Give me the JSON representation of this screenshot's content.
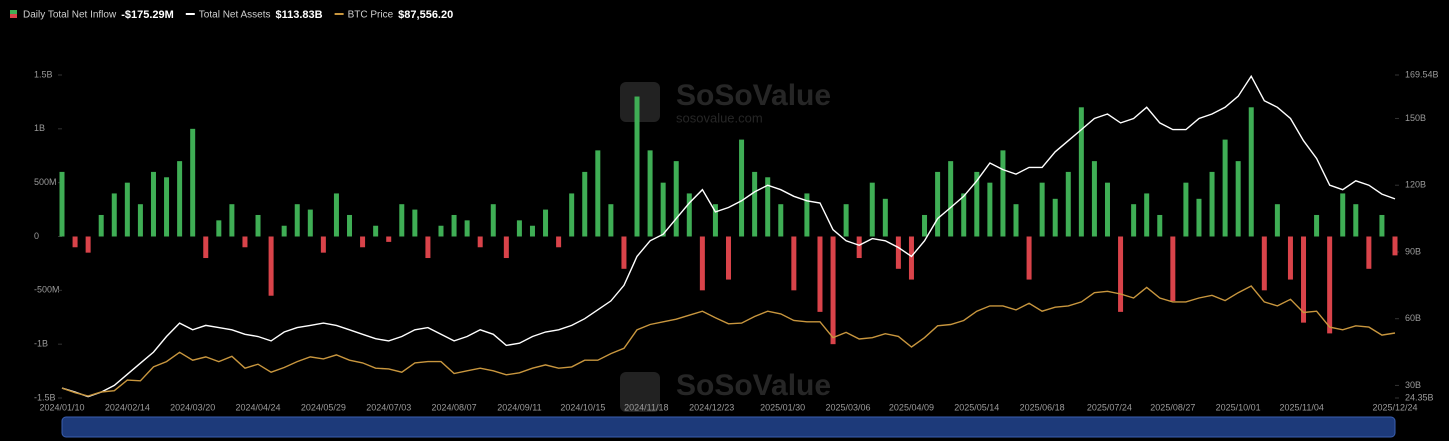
{
  "chart_data": {
    "type": "combo",
    "watermark": {
      "title": "SoSoValue",
      "site": "sosovalue.com"
    },
    "x": [
      "2024/01/10",
      "2024/01/17",
      "2024/01/24",
      "2024/01/31",
      "2024/02/07",
      "2024/02/14",
      "2024/02/21",
      "2024/02/28",
      "2024/03/06",
      "2024/03/13",
      "2024/03/20",
      "2024/03/27",
      "2024/04/03",
      "2024/04/10",
      "2024/04/17",
      "2024/04/24",
      "2024/05/01",
      "2024/05/08",
      "2024/05/15",
      "2024/05/22",
      "2024/05/29",
      "2024/06/05",
      "2024/06/12",
      "2024/06/19",
      "2024/06/26",
      "2024/07/03",
      "2024/07/10",
      "2024/07/17",
      "2024/07/24",
      "2024/07/31",
      "2024/08/07",
      "2024/08/14",
      "2024/08/21",
      "2024/08/28",
      "2024/09/04",
      "2024/09/11",
      "2024/09/18",
      "2024/09/25",
      "2024/10/02",
      "2024/10/09",
      "2024/10/16",
      "2024/10/23",
      "2024/10/30",
      "2024/11/06",
      "2024/11/13",
      "2024/11/20",
      "2024/11/27",
      "2024/12/04",
      "2024/12/11",
      "2024/12/18",
      "2024/12/25",
      "2025/01/01",
      "2025/01/08",
      "2025/01/15",
      "2025/01/22",
      "2025/01/29",
      "2025/02/05",
      "2025/02/12",
      "2025/02/19",
      "2025/02/26",
      "2025/03/05",
      "2025/03/12",
      "2025/03/19",
      "2025/03/26",
      "2025/04/02",
      "2025/04/09",
      "2025/04/16",
      "2025/04/23",
      "2025/04/30",
      "2025/05/07",
      "2025/05/14",
      "2025/05/21",
      "2025/05/28",
      "2025/06/04",
      "2025/06/11",
      "2025/06/18",
      "2025/06/25",
      "2025/07/02",
      "2025/07/09",
      "2025/07/16",
      "2025/07/23",
      "2025/07/30",
      "2025/08/06",
      "2025/08/13",
      "2025/08/20",
      "2025/08/27",
      "2025/09/03",
      "2025/09/10",
      "2025/09/17",
      "2025/09/24",
      "2025/10/01",
      "2025/10/08",
      "2025/10/15",
      "2025/10/22",
      "2025/10/29",
      "2025/11/05",
      "2025/11/12",
      "2025/11/19",
      "2025/11/26",
      "2025/12/03",
      "2025/12/10",
      "2025/12/17",
      "2025/12/24"
    ],
    "xlim": [
      "2024/01/10",
      "2025/12/24"
    ],
    "xticks": [
      "2024/01/10",
      "2024/02/14",
      "2024/03/20",
      "2024/04/24",
      "2024/05/29",
      "2024/07/03",
      "2024/08/07",
      "2024/09/11",
      "2024/10/15",
      "2024/11/18",
      "2024/12/23",
      "2025/01/30",
      "2025/03/06",
      "2025/04/09",
      "2025/05/14",
      "2025/06/18",
      "2025/07/24",
      "2025/08/27",
      "2025/10/01",
      "2025/11/04",
      "2025/12/24"
    ],
    "ylim": [
      -1500,
      1500
    ],
    "yticks": [
      {
        "value": -1500,
        "label": "-1.5B"
      },
      {
        "value": -1000,
        "label": "-1B"
      },
      {
        "value": -500,
        "label": "-500M"
      },
      0,
      {
        "value": 500,
        "label": "500M"
      },
      {
        "value": 1000,
        "label": "1B"
      },
      {
        "value": 1500,
        "label": "1.5B"
      }
    ],
    "y2lim": [
      24.35,
      169.54
    ],
    "y2ticks": [
      {
        "value": 24.35,
        "label": "24.35B"
      },
      {
        "value": 30,
        "label": "30B"
      },
      {
        "value": 60,
        "label": "60B"
      },
      {
        "value": 90,
        "label": "90B"
      },
      {
        "value": 120,
        "label": "120B"
      },
      {
        "value": 150,
        "label": "150B"
      },
      {
        "value": 169.54,
        "label": "169.54B"
      }
    ],
    "y3lim": [
      38500,
      282300
    ],
    "series": [
      {
        "name": "Daily Total Net Inflow",
        "type": "bar",
        "legend_value": "-$175.29M",
        "color": "#3fae55",
        "color_negative": "#d9434a",
        "values": [
          600,
          -100,
          -150,
          200,
          400,
          500,
          300,
          600,
          550,
          700,
          1000,
          -200,
          150,
          300,
          -100,
          200,
          -550,
          100,
          300,
          250,
          -150,
          400,
          200,
          -100,
          100,
          -50,
          300,
          250,
          -200,
          100,
          200,
          150,
          -100,
          300,
          -200,
          150,
          100,
          250,
          -100,
          400,
          600,
          800,
          300,
          -300,
          1300,
          800,
          500,
          700,
          400,
          -500,
          300,
          -400,
          900,
          600,
          550,
          300,
          -500,
          400,
          -700,
          -1000,
          300,
          -200,
          500,
          350,
          -300,
          -400,
          200,
          600,
          700,
          400,
          600,
          500,
          800,
          300,
          -400,
          500,
          350,
          600,
          1200,
          700,
          500,
          -700,
          300,
          400,
          200,
          -600,
          500,
          350,
          600,
          900,
          700,
          1200,
          -500,
          300,
          -400,
          -800,
          200,
          -900,
          400,
          300,
          -300,
          200,
          -175.29
        ]
      },
      {
        "name": "Total Net Assets",
        "type": "line",
        "axis": "y2",
        "legend_value": "$113.83B",
        "color": "#ffffff",
        "values": [
          28.8,
          27,
          25,
          27,
          30,
          35,
          40,
          45,
          52,
          58,
          55,
          57,
          56,
          55,
          53,
          52,
          50,
          54,
          56,
          57,
          58,
          57,
          55,
          53,
          51,
          50,
          52,
          55,
          56,
          53,
          50,
          52,
          55,
          53,
          48,
          49,
          52,
          54,
          55,
          57,
          60,
          64,
          68,
          75,
          88,
          95,
          98,
          105,
          112,
          118,
          108,
          110,
          113,
          117,
          120,
          118,
          115,
          113,
          112,
          100,
          95,
          93,
          96,
          95,
          92,
          88,
          95,
          105,
          110,
          115,
          122,
          130,
          127,
          125,
          128,
          128,
          135,
          140,
          145,
          150,
          152,
          148,
          150,
          155,
          148,
          145,
          145,
          150,
          152,
          155,
          160,
          169,
          158,
          155,
          150,
          140,
          132,
          120,
          118,
          122,
          120,
          116,
          113.83
        ]
      },
      {
        "name": "BTC Price",
        "type": "line",
        "axis": "y3",
        "legend_value": "$87,556.20",
        "color": "#c8963e",
        "values": [
          46000,
          42500,
          40000,
          43000,
          44000,
          52000,
          51500,
          62000,
          66000,
          73000,
          67000,
          69500,
          66000,
          70000,
          61000,
          64000,
          58000,
          61500,
          66000,
          69500,
          68000,
          71000,
          67000,
          65000,
          61000,
          60500,
          58000,
          65000,
          66000,
          66000,
          57000,
          59000,
          61000,
          59000,
          56000,
          57500,
          61000,
          63500,
          61000,
          62000,
          67000,
          67000,
          72000,
          76000,
          90000,
          94000,
          96000,
          98000,
          101000,
          104000,
          99000,
          94500,
          95000,
          100000,
          104000,
          102000,
          97000,
          96000,
          96000,
          84000,
          88000,
          83000,
          84000,
          87000,
          85000,
          77000,
          84000,
          93000,
          94000,
          97000,
          104000,
          108000,
          108000,
          105000,
          110000,
          104000,
          107000,
          108000,
          111000,
          118000,
          119000,
          117000,
          114000,
          122000,
          114000,
          111000,
          111000,
          114000,
          116000,
          112000,
          118000,
          123000,
          111000,
          108000,
          113000,
          103000,
          104000,
          92000,
          90000,
          93000,
          92000,
          86000,
          87556.2
        ]
      }
    ]
  }
}
